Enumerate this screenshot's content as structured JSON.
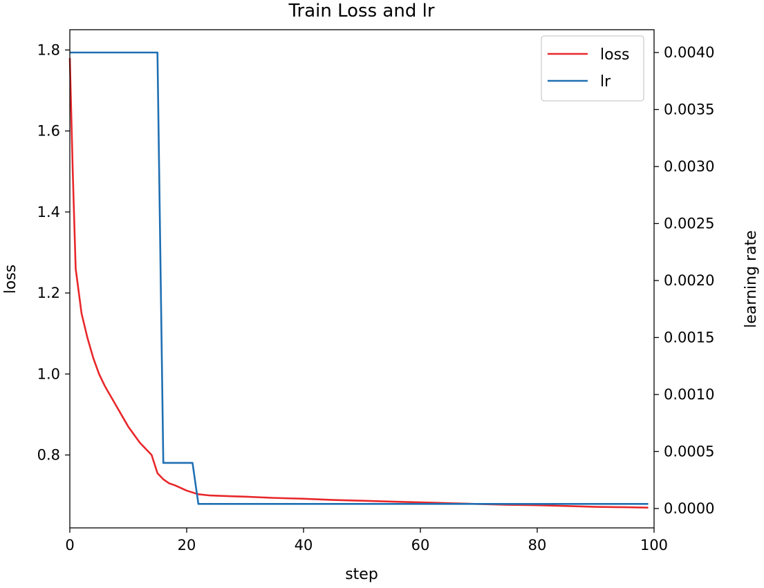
{
  "chart_data": {
    "type": "line",
    "title": "Train Loss and lr",
    "xlabel": "step",
    "ylabel_left": "loss",
    "ylabel_right": "learning rate",
    "xlim": [
      0,
      100
    ],
    "ylim_left": [
      0.62,
      1.85
    ],
    "ylim_right": [
      -0.00017,
      0.0042
    ],
    "x_ticks": [
      0,
      20,
      40,
      60,
      80,
      100
    ],
    "y_left_ticks": [
      0.8,
      1.0,
      1.2,
      1.4,
      1.6,
      1.8
    ],
    "y_right_ticks": [
      0.0,
      0.0005,
      0.001,
      0.0015,
      0.002,
      0.0025,
      0.003,
      0.0035,
      0.004
    ],
    "legend": {
      "placement": "top-right",
      "entries": [
        "loss",
        "lr"
      ]
    },
    "series": [
      {
        "name": "loss",
        "axis": "left",
        "color": "#e8272a",
        "x": [
          0,
          0.5,
          1,
          2,
          3,
          4,
          5,
          6,
          7,
          8,
          9,
          10,
          11,
          12,
          13,
          14,
          15,
          16,
          17,
          18,
          20,
          22,
          24,
          26,
          28,
          30,
          35,
          40,
          45,
          50,
          55,
          60,
          65,
          70,
          75,
          80,
          85,
          90,
          95,
          99
        ],
        "y": [
          1.78,
          1.5,
          1.26,
          1.15,
          1.09,
          1.04,
          1.0,
          0.97,
          0.945,
          0.92,
          0.895,
          0.87,
          0.85,
          0.83,
          0.815,
          0.8,
          0.755,
          0.74,
          0.73,
          0.725,
          0.712,
          0.703,
          0.7,
          0.699,
          0.698,
          0.697,
          0.694,
          0.692,
          0.689,
          0.687,
          0.685,
          0.683,
          0.681,
          0.679,
          0.677,
          0.676,
          0.674,
          0.672,
          0.671,
          0.67
        ]
      },
      {
        "name": "lr",
        "axis": "right",
        "color": "#1f6fb2",
        "x": [
          0,
          15,
          16,
          21,
          22,
          99
        ],
        "y": [
          0.004,
          0.004,
          0.0004,
          0.0004,
          4e-05,
          4e-05
        ]
      }
    ]
  }
}
